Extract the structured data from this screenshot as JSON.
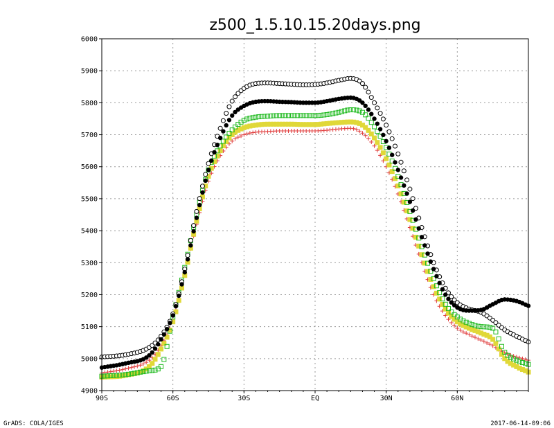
{
  "footer": {
    "left": "GrADS: COLA/IGES",
    "right": "2017-06-14-09:06"
  },
  "chart_data": {
    "type": "scatter",
    "title": "z500_1.5.10.15.20days.png",
    "xlabel": "",
    "ylabel": "",
    "xlim": [
      -90,
      90
    ],
    "ylim": [
      4900,
      6000
    ],
    "xticks": [
      -90,
      -60,
      -30,
      0,
      30,
      60
    ],
    "xtick_labels": [
      "90S",
      "60S",
      "30S",
      "EQ",
      "30N",
      "60N"
    ],
    "yticks": [
      4900,
      5000,
      5100,
      5200,
      5300,
      5400,
      5500,
      5600,
      5700,
      5800,
      5900,
      6000
    ],
    "ytick_labels": [
      "4900",
      "5000",
      "5100",
      "5200",
      "5300",
      "5400",
      "5500",
      "5600",
      "5700",
      "5800",
      "5900",
      "6000"
    ],
    "grid": true,
    "x": [
      -90,
      -80,
      -70,
      -65,
      -60,
      -55,
      -50,
      -45,
      -40,
      -35,
      -30,
      -25,
      -20,
      -15,
      -10,
      -5,
      0,
      5,
      10,
      15,
      20,
      25,
      30,
      35,
      40,
      45,
      50,
      55,
      60,
      65,
      70,
      75,
      80,
      85,
      90
    ],
    "series": [
      {
        "marker": "open-circle",
        "color": "#000000",
        "values": [
          5005,
          5012,
          5035,
          5070,
          5140,
          5280,
          5460,
          5610,
          5720,
          5805,
          5845,
          5860,
          5862,
          5860,
          5858,
          5856,
          5857,
          5862,
          5870,
          5876,
          5860,
          5800,
          5730,
          5640,
          5530,
          5410,
          5300,
          5220,
          5175,
          5155,
          5145,
          5120,
          5090,
          5070,
          5052
        ]
      },
      {
        "marker": "filled-circle",
        "color": "#000000",
        "values": [
          4972,
          4985,
          5010,
          5060,
          5135,
          5270,
          5440,
          5590,
          5690,
          5760,
          5790,
          5803,
          5805,
          5803,
          5802,
          5800,
          5800,
          5805,
          5812,
          5816,
          5800,
          5750,
          5680,
          5590,
          5490,
          5380,
          5280,
          5200,
          5160,
          5150,
          5152,
          5170,
          5185,
          5180,
          5165
        ]
      },
      {
        "marker": "open-square",
        "color": "#22bb22",
        "values": [
          4945,
          4950,
          4962,
          4975,
          5130,
          5285,
          5450,
          5590,
          5665,
          5715,
          5745,
          5755,
          5758,
          5760,
          5760,
          5760,
          5760,
          5763,
          5770,
          5778,
          5770,
          5725,
          5660,
          5570,
          5460,
          5350,
          5250,
          5170,
          5130,
          5110,
          5100,
          5095,
          5020,
          4995,
          4982
        ]
      },
      {
        "marker": "filled-square",
        "color": "#e0d838",
        "values": [
          4942,
          4948,
          4975,
          5030,
          5115,
          5260,
          5430,
          5570,
          5650,
          5700,
          5722,
          5730,
          5733,
          5733,
          5733,
          5732,
          5732,
          5735,
          5738,
          5740,
          5730,
          5690,
          5625,
          5540,
          5435,
          5325,
          5225,
          5155,
          5115,
          5095,
          5080,
          5060,
          5000,
          4975,
          4958
        ]
      },
      {
        "marker": "plus",
        "color": "#e03b3b",
        "values": [
          4955,
          4968,
          4995,
          5040,
          5120,
          5265,
          5420,
          5555,
          5635,
          5680,
          5700,
          5708,
          5710,
          5712,
          5712,
          5712,
          5712,
          5714,
          5718,
          5720,
          5705,
          5665,
          5600,
          5515,
          5410,
          5300,
          5200,
          5135,
          5095,
          5075,
          5058,
          5040,
          5018,
          5005,
          4995
        ]
      }
    ]
  }
}
